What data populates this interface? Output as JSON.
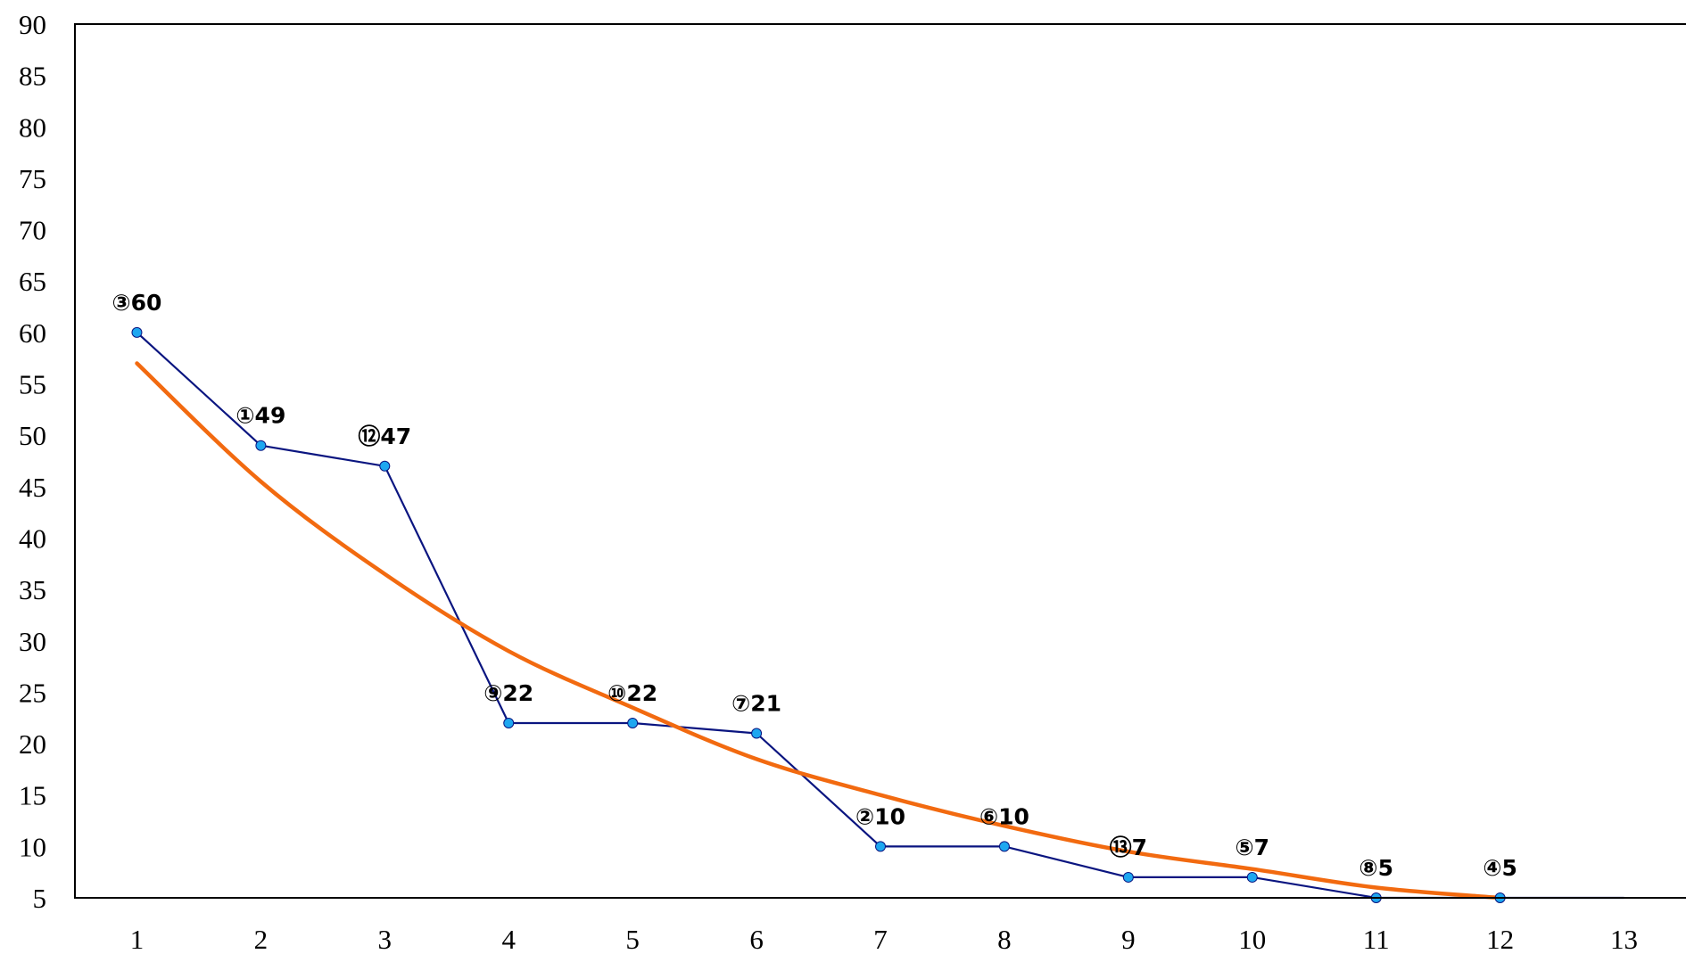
{
  "chart_data": {
    "type": "line",
    "title": "",
    "xlabel": "",
    "ylabel": "",
    "x": [
      1,
      2,
      3,
      4,
      5,
      6,
      7,
      8,
      9,
      10,
      11,
      12,
      13
    ],
    "xlim": [
      0.5,
      13.5
    ],
    "ylim": [
      5,
      90
    ],
    "y_tick_step": 5,
    "grid": false,
    "legend": "none",
    "series": [
      {
        "name": "",
        "color": "#0a1580",
        "marker_color": "#1ea7f0",
        "values": [
          60,
          49,
          47,
          22,
          22,
          21,
          10,
          10,
          7,
          7,
          5,
          5,
          5
        ],
        "labels": [
          "③60",
          "①49",
          "⑫47",
          "⑨22",
          "⑩22",
          "⑦21",
          "②10",
          "⑥10",
          "⑬7",
          "⑤7",
          "⑧5",
          "④5",
          ""
        ],
        "markers": [
          true,
          true,
          true,
          true,
          true,
          true,
          true,
          true,
          true,
          true,
          true,
          true,
          false
        ]
      }
    ],
    "trendline": {
      "type": "exponential",
      "color": "#f26a10",
      "x_range": [
        1,
        12
      ],
      "values": [
        57,
        45.5,
        36.5,
        29,
        23.5,
        18.5,
        15,
        12,
        9.5,
        7.8,
        6,
        5
      ]
    }
  }
}
